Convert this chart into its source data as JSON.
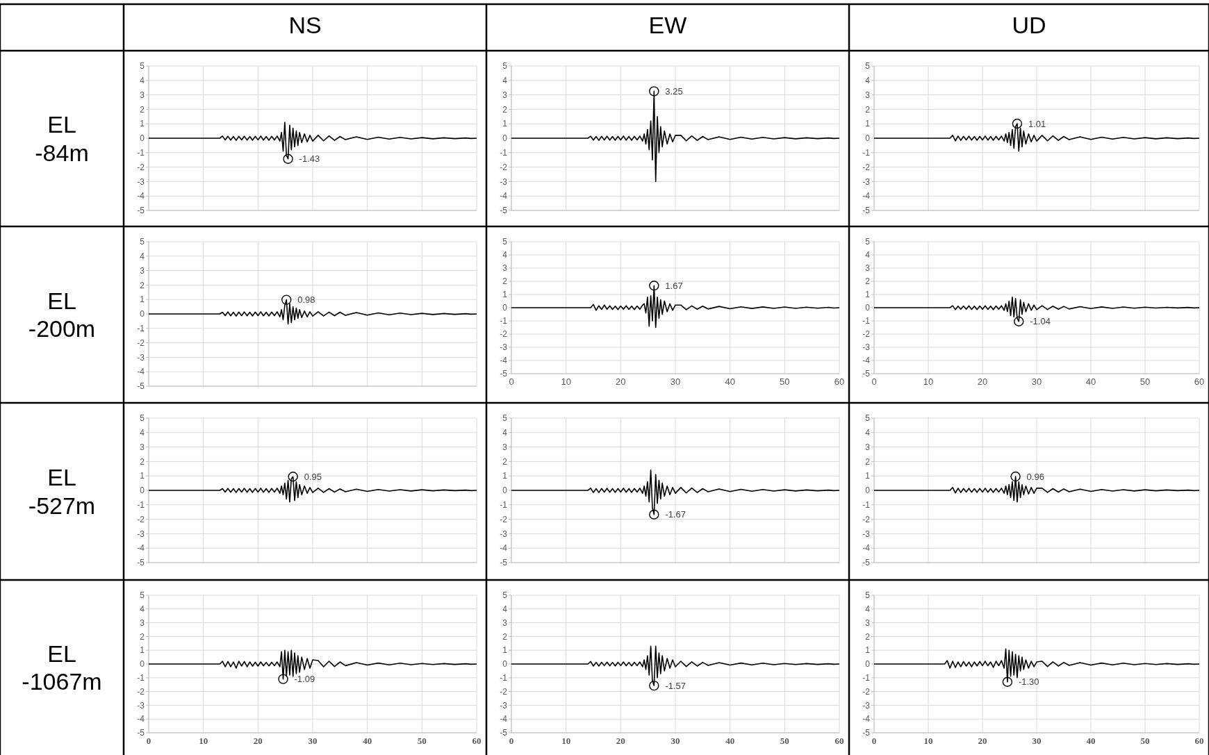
{
  "chart_data": [
    {
      "type": "line",
      "title": "NS",
      "ylabel": "EL -84m",
      "x": [
        0,
        13,
        13.5,
        14,
        14.5,
        15,
        15.5,
        16,
        16.5,
        17,
        17.5,
        18,
        18.5,
        19,
        19.5,
        20,
        20.5,
        21,
        21.5,
        22,
        22.5,
        23,
        23.5,
        24,
        24.3,
        24.6,
        24.9,
        25.2,
        25.5,
        25.8,
        26.1,
        26.4,
        26.7,
        27,
        27.3,
        27.6,
        28,
        28.5,
        29,
        29.5,
        30,
        31,
        32,
        33,
        34,
        35,
        36,
        38,
        40,
        42,
        44,
        46,
        48,
        50,
        52,
        54,
        56,
        58,
        59,
        60
      ],
      "xlim": [
        0,
        60
      ],
      "xticks": [
        0,
        10,
        20,
        30,
        40,
        50,
        60
      ],
      "ylim": [
        -5,
        5
      ],
      "yticks": [
        -5,
        -4,
        -3,
        -2,
        -1,
        0,
        1,
        2,
        3,
        4,
        5
      ],
      "grid": true,
      "tick_labels": "y",
      "annotations": [
        {
          "text": "-1.43",
          "x": 25.5,
          "y": -1.43
        }
      ],
      "series": [
        {
          "color": "#000000",
          "values": [
            0,
            0,
            0.15,
            -0.12,
            0.14,
            -0.13,
            0.12,
            -0.15,
            0.13,
            -0.12,
            0.14,
            -0.13,
            0.12,
            -0.14,
            0.13,
            -0.12,
            0.15,
            -0.13,
            0.12,
            -0.14,
            0.13,
            -0.12,
            0.15,
            -0.2,
            0.4,
            -0.9,
            1.1,
            -1.2,
            -1.43,
            0.9,
            -0.8,
            0.7,
            -0.6,
            0.5,
            -0.5,
            0.4,
            -0.3,
            0.3,
            -0.25,
            0.2,
            -0.2,
            0.2,
            -0.18,
            0.16,
            -0.15,
            0.12,
            -0.1,
            0.1,
            -0.08,
            0.07,
            -0.06,
            0.06,
            -0.05,
            0.04,
            -0.04,
            0.03,
            -0.03,
            0.02,
            -0.02,
            0
          ]
        }
      ]
    },
    {
      "type": "line",
      "title": "EW",
      "x": [
        0,
        13,
        13.5,
        14,
        14.5,
        15,
        15.5,
        16,
        16.5,
        17,
        17.5,
        18,
        18.5,
        19,
        19.5,
        20,
        20.5,
        21,
        21.5,
        22,
        22.5,
        23,
        23.5,
        24,
        24.3,
        24.6,
        24.9,
        25.2,
        25.5,
        25.8,
        26.1,
        26.4,
        26.7,
        27,
        27.3,
        27.6,
        28,
        28.5,
        29,
        29.5,
        30,
        31,
        32,
        33,
        34,
        35,
        36,
        38,
        40,
        42,
        44,
        46,
        48,
        50,
        52,
        54,
        56,
        58,
        59,
        60
      ],
      "xlim": [
        0,
        60
      ],
      "xticks": [
        0,
        10,
        20,
        30,
        40,
        50,
        60
      ],
      "ylim": [
        -5,
        5
      ],
      "yticks": [
        -5,
        -4,
        -3,
        -2,
        -1,
        0,
        1,
        2,
        3,
        4,
        5
      ],
      "grid": true,
      "tick_labels": "y",
      "annotations": [
        {
          "text": "3.25",
          "x": 26.1,
          "y": 3.25
        }
      ],
      "series": [
        {
          "color": "#000000",
          "values": [
            0,
            0,
            0,
            0,
            0.14,
            -0.13,
            0.12,
            -0.15,
            0.13,
            -0.12,
            0.14,
            -0.13,
            0.12,
            -0.14,
            0.13,
            -0.12,
            0.15,
            -0.13,
            0.12,
            -0.14,
            0.13,
            -0.12,
            0.15,
            -0.2,
            0.3,
            -0.4,
            0.6,
            -0.8,
            1.2,
            -1.5,
            3.25,
            -3.0,
            1.5,
            -1.0,
            0.8,
            -0.6,
            0.5,
            -0.4,
            0.3,
            -0.25,
            0.2,
            0.2,
            -0.18,
            0.16,
            -0.15,
            0.12,
            -0.1,
            0.1,
            -0.08,
            0.07,
            -0.06,
            0.06,
            -0.05,
            0.04,
            -0.04,
            0.03,
            -0.03,
            0.02,
            -0.02,
            0
          ]
        }
      ]
    },
    {
      "type": "line",
      "title": "UD",
      "x": [
        0,
        13,
        13.5,
        14,
        14.5,
        15,
        15.5,
        16,
        16.5,
        17,
        17.5,
        18,
        18.5,
        19,
        19.5,
        20,
        20.5,
        21,
        21.5,
        22,
        22.5,
        23,
        23.5,
        24,
        24.3,
        24.6,
        24.9,
        25.2,
        25.5,
        25.8,
        26.1,
        26.4,
        26.7,
        27,
        27.3,
        27.6,
        28,
        28.5,
        29,
        29.5,
        30,
        31,
        32,
        33,
        34,
        35,
        36,
        38,
        40,
        42,
        44,
        46,
        48,
        50,
        52,
        54,
        56,
        58,
        59,
        60
      ],
      "xlim": [
        0,
        60
      ],
      "xticks": [
        0,
        10,
        20,
        30,
        40,
        50,
        60
      ],
      "ylim": [
        -5,
        5
      ],
      "yticks": [
        -5,
        -4,
        -3,
        -2,
        -1,
        0,
        1,
        2,
        3,
        4,
        5
      ],
      "grid": true,
      "tick_labels": "y",
      "annotations": [
        {
          "text": "1.01",
          "x": 26.4,
          "y": 1.01
        }
      ],
      "series": [
        {
          "color": "#000000",
          "values": [
            0,
            0,
            0,
            0,
            0.2,
            -0.18,
            0.15,
            -0.15,
            0.13,
            -0.12,
            0.14,
            -0.13,
            0.12,
            -0.14,
            0.13,
            -0.12,
            0.15,
            -0.13,
            0.12,
            -0.14,
            0.13,
            -0.12,
            0.15,
            -0.2,
            0.3,
            -0.3,
            0.4,
            -0.5,
            0.6,
            -0.7,
            0.8,
            1.01,
            -0.9,
            0.7,
            -0.6,
            0.5,
            -0.4,
            0.3,
            -0.25,
            0.2,
            -0.2,
            0.2,
            -0.18,
            0.16,
            -0.15,
            0.12,
            -0.1,
            0.1,
            -0.08,
            0.07,
            -0.06,
            0.06,
            -0.05,
            0.04,
            -0.04,
            0.03,
            -0.03,
            0.02,
            -0.02,
            0
          ]
        }
      ]
    },
    {
      "type": "line",
      "ylabel": "EL -200m",
      "x": [
        0,
        13,
        13.5,
        14,
        14.5,
        15,
        15.5,
        16,
        16.5,
        17,
        17.5,
        18,
        18.5,
        19,
        19.5,
        20,
        20.5,
        21,
        21.5,
        22,
        22.5,
        23,
        23.5,
        24,
        24.3,
        24.6,
        24.9,
        25.2,
        25.5,
        25.8,
        26.1,
        26.4,
        26.7,
        27,
        27.3,
        27.6,
        28,
        28.5,
        29,
        29.5,
        30,
        31,
        32,
        33,
        34,
        35,
        36,
        38,
        40,
        42,
        44,
        46,
        48,
        50,
        52,
        54,
        56,
        58,
        59,
        60
      ],
      "xlim": [
        0,
        60
      ],
      "xticks": [
        0,
        10,
        20,
        30,
        40,
        50,
        60
      ],
      "ylim": [
        -5,
        5
      ],
      "yticks": [
        -5,
        -4,
        -3,
        -2,
        -1,
        0,
        1,
        2,
        3,
        4,
        5
      ],
      "grid": true,
      "tick_labels": "y",
      "annotations": [
        {
          "text": "0.98",
          "x": 25.2,
          "y": 0.98
        }
      ],
      "series": [
        {
          "color": "#000000",
          "values": [
            0,
            0,
            0.12,
            -0.12,
            0.14,
            -0.13,
            0.12,
            -0.15,
            0.13,
            -0.12,
            0.14,
            -0.13,
            0.12,
            -0.14,
            0.13,
            -0.12,
            0.15,
            -0.13,
            0.12,
            -0.14,
            0.13,
            -0.12,
            0.15,
            -0.2,
            0.3,
            -0.4,
            0.6,
            0.98,
            -0.7,
            0.7,
            -0.6,
            0.5,
            -0.4,
            0.4,
            -0.3,
            0.3,
            -0.25,
            0.2,
            -0.2,
            0.15,
            -0.15,
            0.15,
            -0.14,
            0.13,
            -0.12,
            0.12,
            -0.1,
            0.1,
            -0.08,
            0.07,
            -0.06,
            0.06,
            -0.05,
            0.04,
            -0.04,
            0.03,
            -0.03,
            0.02,
            -0.02,
            0
          ]
        }
      ]
    },
    {
      "type": "line",
      "x": [
        0,
        13,
        13.5,
        14,
        14.5,
        15,
        15.5,
        16,
        16.5,
        17,
        17.5,
        18,
        18.5,
        19,
        19.5,
        20,
        20.5,
        21,
        21.5,
        22,
        22.5,
        23,
        23.5,
        24,
        24.3,
        24.6,
        24.9,
        25.2,
        25.5,
        25.8,
        26.1,
        26.4,
        26.7,
        27,
        27.3,
        27.6,
        28,
        28.5,
        29,
        29.5,
        30,
        31,
        32,
        33,
        34,
        35,
        36,
        38,
        40,
        42,
        44,
        46,
        48,
        50,
        52,
        54,
        56,
        58,
        59,
        60
      ],
      "xlim": [
        0,
        60
      ],
      "xticks": [
        0,
        10,
        20,
        30,
        40,
        50,
        60
      ],
      "ylim": [
        -5,
        5
      ],
      "yticks": [
        -5,
        -4,
        -3,
        -2,
        -1,
        0,
        1,
        2,
        3,
        4,
        5
      ],
      "grid": true,
      "annotations": [
        {
          "text": "1.67",
          "x": 26.1,
          "y": 1.67
        }
      ],
      "series": [
        {
          "color": "#000000",
          "values": [
            0,
            0,
            0,
            0,
            0,
            0.25,
            -0.2,
            0.15,
            -0.13,
            0.2,
            -0.12,
            0.14,
            -0.13,
            0.12,
            -0.14,
            0.13,
            -0.12,
            0.15,
            -0.13,
            0.12,
            -0.14,
            0.13,
            -0.12,
            0.2,
            0.3,
            -0.4,
            0.8,
            -1.4,
            0.9,
            -1.0,
            1.67,
            -1.5,
            0.8,
            -0.8,
            0.6,
            -0.5,
            0.5,
            -0.3,
            0.3,
            -0.2,
            0.2,
            0.2,
            -0.15,
            0.14,
            -0.12,
            0.12,
            -0.1,
            0.1,
            -0.08,
            0.07,
            -0.06,
            0.06,
            -0.05,
            0.05,
            -0.05,
            0.04,
            -0.04,
            0.03,
            -0.03,
            0
          ]
        }
      ]
    },
    {
      "type": "line",
      "x": [
        0,
        13,
        13.5,
        14,
        14.5,
        15,
        15.5,
        16,
        16.5,
        17,
        17.5,
        18,
        18.5,
        19,
        19.5,
        20,
        20.5,
        21,
        21.5,
        22,
        22.5,
        23,
        23.5,
        24,
        24.3,
        24.6,
        24.9,
        25.2,
        25.5,
        25.8,
        26.1,
        26.4,
        26.7,
        27,
        27.3,
        27.6,
        28,
        28.5,
        29,
        29.5,
        30,
        31,
        32,
        33,
        34,
        35,
        36,
        38,
        40,
        42,
        44,
        46,
        48,
        50,
        52,
        54,
        56,
        58,
        59,
        60
      ],
      "xlim": [
        0,
        60
      ],
      "xticks": [
        0,
        10,
        20,
        30,
        40,
        50,
        60
      ],
      "ylim": [
        -5,
        5
      ],
      "yticks": [
        -5,
        -4,
        -3,
        -2,
        -1,
        0,
        1,
        2,
        3,
        4,
        5
      ],
      "grid": true,
      "annotations": [
        {
          "text": "-1.04",
          "x": 26.7,
          "y": -1.04
        }
      ],
      "series": [
        {
          "color": "#000000",
          "values": [
            0,
            0,
            0,
            0,
            0.15,
            -0.15,
            0.12,
            -0.12,
            0.13,
            -0.12,
            0.14,
            -0.13,
            0.12,
            -0.14,
            0.13,
            -0.12,
            0.15,
            -0.13,
            0.12,
            -0.14,
            0.13,
            -0.12,
            0.15,
            -0.2,
            0.3,
            -0.3,
            0.5,
            -0.6,
            0.8,
            -0.7,
            0.7,
            -0.8,
            -1.04,
            0.6,
            -0.5,
            0.4,
            -0.3,
            0.3,
            -0.2,
            0.2,
            -0.15,
            0.15,
            -0.14,
            0.12,
            -0.12,
            0.1,
            -0.1,
            0.08,
            -0.07,
            0.06,
            -0.05,
            0.05,
            -0.04,
            0.04,
            -0.03,
            0.03,
            -0.02,
            0.02,
            -0.02,
            0
          ]
        }
      ]
    },
    {
      "type": "line",
      "ylabel": "EL -527m",
      "x": [
        0,
        13,
        13.5,
        14,
        14.5,
        15,
        15.5,
        16,
        16.5,
        17,
        17.5,
        18,
        18.5,
        19,
        19.5,
        20,
        20.5,
        21,
        21.5,
        22,
        22.5,
        23,
        23.5,
        24,
        24.3,
        24.6,
        24.9,
        25.2,
        25.5,
        25.8,
        26.1,
        26.4,
        26.7,
        27,
        27.3,
        27.6,
        28,
        28.5,
        29,
        29.5,
        30,
        31,
        32,
        33,
        34,
        35,
        36,
        38,
        40,
        42,
        44,
        46,
        48,
        50,
        52,
        54,
        56,
        58,
        59,
        60
      ],
      "xlim": [
        0,
        60
      ],
      "xticks": [
        0,
        10,
        20,
        30,
        40,
        50,
        60
      ],
      "ylim": [
        -5,
        5
      ],
      "yticks": [
        -5,
        -4,
        -3,
        -2,
        -1,
        0,
        1,
        2,
        3,
        4,
        5
      ],
      "grid": true,
      "tick_labels": "y",
      "annotations": [
        {
          "text": "0.95",
          "x": 26.4,
          "y": 0.95
        }
      ],
      "series": [
        {
          "color": "#000000",
          "values": [
            0,
            0,
            0.12,
            -0.12,
            0.14,
            -0.13,
            0.12,
            -0.15,
            0.13,
            -0.12,
            0.14,
            -0.13,
            0.12,
            -0.14,
            0.13,
            -0.12,
            0.15,
            -0.13,
            0.12,
            -0.14,
            0.13,
            -0.12,
            0.15,
            -0.2,
            0.3,
            -0.3,
            0.5,
            -0.6,
            0.7,
            -0.8,
            0.8,
            0.95,
            -0.7,
            0.6,
            -0.5,
            0.4,
            -0.3,
            0.3,
            -0.2,
            0.2,
            -0.15,
            0.15,
            -0.14,
            0.12,
            -0.12,
            0.1,
            -0.1,
            0.08,
            -0.07,
            0.06,
            -0.05,
            0.05,
            -0.04,
            0.04,
            -0.03,
            0.03,
            -0.02,
            0.02,
            -0.02,
            0
          ]
        }
      ]
    },
    {
      "type": "line",
      "x": [
        0,
        13,
        13.5,
        14,
        14.5,
        15,
        15.5,
        16,
        16.5,
        17,
        17.5,
        18,
        18.5,
        19,
        19.5,
        20,
        20.5,
        21,
        21.5,
        22,
        22.5,
        23,
        23.5,
        24,
        24.3,
        24.6,
        24.9,
        25.2,
        25.5,
        25.8,
        26.1,
        26.4,
        26.7,
        27,
        27.3,
        27.6,
        28,
        28.5,
        29,
        29.5,
        30,
        31,
        32,
        33,
        34,
        35,
        36,
        38,
        40,
        42,
        44,
        46,
        48,
        50,
        52,
        54,
        56,
        58,
        59,
        60
      ],
      "xlim": [
        0,
        60
      ],
      "xticks": [
        0,
        10,
        20,
        30,
        40,
        50,
        60
      ],
      "ylim": [
        -5,
        5
      ],
      "yticks": [
        -5,
        -4,
        -3,
        -2,
        -1,
        0,
        1,
        2,
        3,
        4,
        5
      ],
      "grid": true,
      "tick_labels": "y",
      "annotations": [
        {
          "text": "-1.67",
          "x": 26.1,
          "y": -1.67
        }
      ],
      "series": [
        {
          "color": "#000000",
          "values": [
            0,
            0,
            0,
            0,
            0.15,
            -0.15,
            0.12,
            -0.15,
            0.13,
            -0.12,
            0.14,
            -0.13,
            0.12,
            -0.14,
            0.13,
            -0.12,
            0.15,
            -0.13,
            0.12,
            -0.14,
            0.13,
            -0.12,
            0.15,
            -0.2,
            0.3,
            -0.4,
            0.6,
            -0.8,
            1.4,
            -1.2,
            -1.67,
            1.1,
            -0.9,
            0.7,
            -0.6,
            0.5,
            -0.4,
            0.3,
            -0.3,
            0.2,
            -0.2,
            0.2,
            -0.18,
            0.16,
            -0.15,
            0.12,
            -0.1,
            0.1,
            -0.08,
            0.07,
            -0.06,
            0.06,
            -0.05,
            0.04,
            -0.04,
            0.03,
            -0.03,
            0.02,
            -0.02,
            0
          ]
        }
      ]
    },
    {
      "type": "line",
      "x": [
        0,
        13,
        13.5,
        14,
        14.5,
        15,
        15.5,
        16,
        16.5,
        17,
        17.5,
        18,
        18.5,
        19,
        19.5,
        20,
        20.5,
        21,
        21.5,
        22,
        22.5,
        23,
        23.5,
        24,
        24.3,
        24.6,
        24.9,
        25.2,
        25.5,
        25.8,
        26.1,
        26.4,
        26.7,
        27,
        27.3,
        27.6,
        28,
        28.5,
        29,
        29.5,
        30,
        31,
        32,
        33,
        34,
        35,
        36,
        38,
        40,
        42,
        44,
        46,
        48,
        50,
        52,
        54,
        56,
        58,
        59,
        60
      ],
      "xlim": [
        0,
        60
      ],
      "xticks": [
        0,
        10,
        20,
        30,
        40,
        50,
        60
      ],
      "ylim": [
        -5,
        5
      ],
      "yticks": [
        -5,
        -4,
        -3,
        -2,
        -1,
        0,
        1,
        2,
        3,
        4,
        5
      ],
      "grid": true,
      "tick_labels": "y",
      "annotations": [
        {
          "text": "0.96",
          "x": 26.1,
          "y": 0.96
        }
      ],
      "series": [
        {
          "color": "#000000",
          "values": [
            0,
            0,
            0,
            0,
            0.2,
            -0.18,
            0.15,
            -0.15,
            0.13,
            -0.12,
            0.14,
            -0.13,
            0.12,
            -0.14,
            0.13,
            -0.12,
            0.15,
            -0.13,
            0.12,
            -0.14,
            0.13,
            -0.12,
            0.15,
            -0.2,
            0.3,
            -0.3,
            0.4,
            -0.5,
            0.6,
            -0.7,
            0.96,
            -0.8,
            0.6,
            -0.5,
            0.4,
            -0.3,
            0.3,
            -0.25,
            0.2,
            -0.2,
            0.15,
            0.15,
            -0.14,
            0.12,
            -0.12,
            0.1,
            -0.1,
            0.08,
            -0.07,
            0.06,
            -0.05,
            0.05,
            -0.04,
            0.04,
            -0.03,
            0.03,
            -0.02,
            0.02,
            -0.02,
            0
          ]
        }
      ]
    },
    {
      "type": "line",
      "ylabel": "EL -1067m",
      "x": [
        0,
        13,
        13.5,
        14,
        14.5,
        15,
        15.5,
        16,
        16.5,
        17,
        17.5,
        18,
        18.5,
        19,
        19.5,
        20,
        20.5,
        21,
        21.5,
        22,
        22.5,
        23,
        23.5,
        24,
        24.3,
        24.6,
        24.9,
        25.2,
        25.5,
        25.8,
        26.1,
        26.4,
        26.7,
        27,
        27.3,
        27.6,
        28,
        28.5,
        29,
        29.5,
        30,
        31,
        32,
        33,
        34,
        35,
        36,
        38,
        40,
        42,
        44,
        46,
        48,
        50,
        52,
        54,
        56,
        58,
        59,
        60
      ],
      "xlim": [
        0,
        60
      ],
      "xticks": [
        0,
        10,
        20,
        30,
        40,
        50,
        60
      ],
      "ylim": [
        -5,
        5
      ],
      "yticks": [
        -5,
        -4,
        -3,
        -2,
        -1,
        0,
        1,
        2,
        3,
        4,
        5
      ],
      "grid": true,
      "annotations": [
        {
          "text": "-1.09",
          "x": 24.6,
          "y": -1.09
        }
      ],
      "series": [
        {
          "color": "#000000",
          "values": [
            0,
            0,
            0.2,
            -0.2,
            0.18,
            -0.2,
            0.15,
            -0.3,
            0.2,
            -0.15,
            0.18,
            -0.2,
            0.15,
            -0.16,
            0.13,
            -0.15,
            0.15,
            -0.13,
            0.12,
            -0.14,
            0.13,
            -0.12,
            0.15,
            -0.2,
            0.9,
            -1.09,
            1.0,
            -0.9,
            0.9,
            -0.8,
            1.0,
            -0.9,
            0.8,
            -0.7,
            0.6,
            -0.6,
            0.5,
            -0.4,
            0.4,
            -0.3,
            0.3,
            0.25,
            -0.2,
            0.2,
            -0.18,
            0.15,
            -0.12,
            0.1,
            -0.08,
            0.07,
            -0.06,
            0.06,
            -0.05,
            0.04,
            -0.04,
            0.03,
            -0.03,
            0.02,
            -0.02,
            0
          ]
        }
      ]
    },
    {
      "type": "line",
      "x": [
        0,
        13,
        13.5,
        14,
        14.5,
        15,
        15.5,
        16,
        16.5,
        17,
        17.5,
        18,
        18.5,
        19,
        19.5,
        20,
        20.5,
        21,
        21.5,
        22,
        22.5,
        23,
        23.5,
        24,
        24.3,
        24.6,
        24.9,
        25.2,
        25.5,
        25.8,
        26.1,
        26.4,
        26.7,
        27,
        27.3,
        27.6,
        28,
        28.5,
        29,
        29.5,
        30,
        31,
        32,
        33,
        34,
        35,
        36,
        38,
        40,
        42,
        44,
        46,
        48,
        50,
        52,
        54,
        56,
        58,
        59,
        60
      ],
      "xlim": [
        0,
        60
      ],
      "xticks": [
        0,
        10,
        20,
        30,
        40,
        50,
        60
      ],
      "ylim": [
        -5,
        5
      ],
      "yticks": [
        -5,
        -4,
        -3,
        -2,
        -1,
        0,
        1,
        2,
        3,
        4,
        5
      ],
      "grid": true,
      "annotations": [
        {
          "text": "-1.57",
          "x": 26.1,
          "y": -1.57
        }
      ],
      "series": [
        {
          "color": "#000000",
          "values": [
            0,
            0,
            0,
            0,
            0.18,
            -0.15,
            0.12,
            -0.15,
            0.13,
            -0.12,
            0.14,
            -0.13,
            0.12,
            -0.14,
            0.13,
            -0.12,
            0.15,
            -0.13,
            0.12,
            -0.14,
            0.13,
            -0.12,
            0.15,
            -0.2,
            0.3,
            -0.4,
            0.6,
            -0.8,
            1.3,
            -1.2,
            -1.57,
            1.3,
            -1.0,
            0.8,
            -0.7,
            0.6,
            -0.5,
            0.4,
            -0.3,
            0.3,
            -0.2,
            0.2,
            -0.18,
            0.16,
            -0.15,
            0.12,
            -0.1,
            0.1,
            -0.08,
            0.07,
            -0.06,
            0.06,
            -0.05,
            0.04,
            -0.04,
            0.03,
            -0.03,
            0.02,
            -0.02,
            0
          ]
        }
      ]
    },
    {
      "type": "line",
      "x": [
        0,
        13,
        13.5,
        14,
        14.5,
        15,
        15.5,
        16,
        16.5,
        17,
        17.5,
        18,
        18.5,
        19,
        19.5,
        20,
        20.5,
        21,
        21.5,
        22,
        22.5,
        23,
        23.5,
        24,
        24.3,
        24.6,
        24.9,
        25.2,
        25.5,
        25.8,
        26.1,
        26.4,
        26.7,
        27,
        27.3,
        27.6,
        28,
        28.5,
        29,
        29.5,
        30,
        31,
        32,
        33,
        34,
        35,
        36,
        38,
        40,
        42,
        44,
        46,
        48,
        50,
        52,
        54,
        56,
        58,
        59,
        60
      ],
      "xlim": [
        0,
        60
      ],
      "xticks": [
        0,
        10,
        20,
        30,
        40,
        50,
        60
      ],
      "ylim": [
        -5,
        5
      ],
      "yticks": [
        -5,
        -4,
        -3,
        -2,
        -1,
        0,
        1,
        2,
        3,
        4,
        5
      ],
      "grid": true,
      "annotations": [
        {
          "text": "-1.30",
          "x": 24.6,
          "y": -1.3
        }
      ],
      "series": [
        {
          "color": "#000000",
          "values": [
            0,
            0,
            0.25,
            -0.3,
            0.2,
            -0.25,
            0.15,
            -0.2,
            0.18,
            -0.15,
            0.14,
            -0.2,
            0.15,
            -0.14,
            0.18,
            -0.12,
            0.2,
            -0.13,
            0.15,
            -0.25,
            0.2,
            -0.12,
            0.25,
            -0.3,
            1.1,
            -1.3,
            1.0,
            -0.9,
            0.9,
            -0.8,
            0.7,
            -1.0,
            0.6,
            -0.5,
            0.5,
            -0.4,
            0.3,
            -0.3,
            0.2,
            -0.2,
            0.15,
            0.2,
            -0.18,
            0.16,
            -0.15,
            0.12,
            -0.1,
            0.1,
            -0.08,
            0.07,
            -0.06,
            0.06,
            -0.05,
            0.04,
            -0.04,
            0.03,
            -0.03,
            0.02,
            -0.02,
            0
          ]
        }
      ]
    }
  ]
}
